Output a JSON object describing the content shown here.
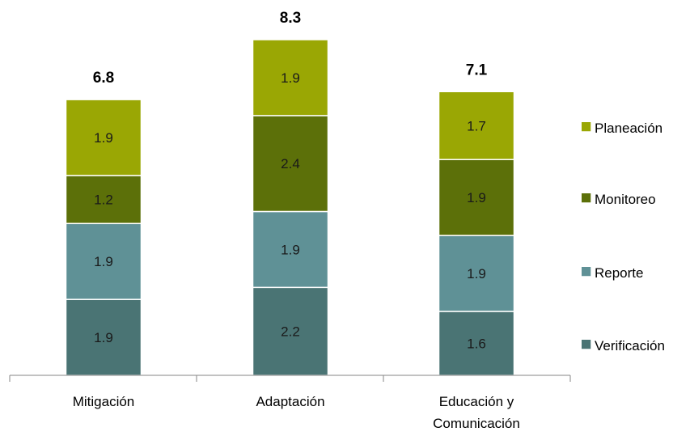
{
  "chart_data": {
    "type": "bar",
    "stacked": true,
    "title": "",
    "xlabel": "",
    "ylabel": "",
    "categories": [
      [
        "Mitigación"
      ],
      [
        "Adaptación"
      ],
      [
        "Educación y",
        "Comunicación"
      ]
    ],
    "totals": [
      "6.8",
      "8.3",
      "7.1"
    ],
    "series": [
      {
        "name": "Verificación",
        "color": "#4a7474",
        "values": [
          1.9,
          2.2,
          1.6
        ],
        "labels": [
          "1.9",
          "2.2",
          "1.6"
        ]
      },
      {
        "name": "Reporte",
        "color": "#5f9196",
        "values": [
          1.9,
          1.9,
          1.9
        ],
        "labels": [
          "1.9",
          "1.9",
          "1.9"
        ]
      },
      {
        "name": "Monitoreo",
        "color": "#5c7009",
        "values": [
          1.2,
          2.4,
          1.9
        ],
        "labels": [
          "1.2",
          "2.4",
          "1.9"
        ]
      },
      {
        "name": "Planeación",
        "color": "#9aa704",
        "values": [
          1.9,
          1.9,
          1.7
        ],
        "labels": [
          "1.9",
          "1.9",
          "1.7"
        ]
      }
    ],
    "legend": {
      "position": "right",
      "order": [
        "Planeación",
        "Monitoreo",
        "Reporte",
        "Verificación"
      ]
    },
    "grid": false,
    "ylim": [
      0,
      8.3
    ]
  }
}
